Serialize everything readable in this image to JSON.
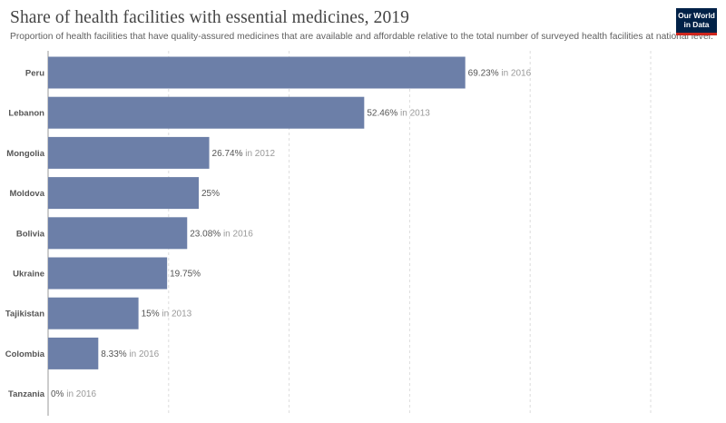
{
  "header": {
    "title": "Share of health facilities with essential medicines, 2019",
    "subtitle": "Proportion of health facilities that have quality-assured medicines that are available and affordable relative to the total number of surveyed health facilities at national level.",
    "logo_line1": "Our World",
    "logo_line2": "in Data"
  },
  "colors": {
    "bar": "#6c7fa8",
    "logo_bg": "#002147",
    "logo_accent": "#ce261e"
  },
  "chart_data": {
    "type": "bar",
    "orientation": "horizontal",
    "title": "Share of health facilities with essential medicines, 2019",
    "subtitle": "Proportion of health facilities that have quality-assured medicines that are available and affordable relative to the total number of surveyed health facilities at national level.",
    "xlim": [
      0,
      100
    ],
    "grid": true,
    "value_suffix": "%",
    "categories": [
      "Peru",
      "Lebanon",
      "Mongolia",
      "Moldova",
      "Bolivia",
      "Ukraine",
      "Tajikistan",
      "Colombia",
      "Tanzania"
    ],
    "values": [
      69.23,
      52.46,
      26.74,
      25,
      23.08,
      19.75,
      15,
      8.33,
      0
    ],
    "years": [
      "in 2016",
      "in 2013",
      "in 2012",
      "",
      "in 2016",
      "",
      "in 2013",
      "in 2016",
      "in 2016"
    ]
  }
}
